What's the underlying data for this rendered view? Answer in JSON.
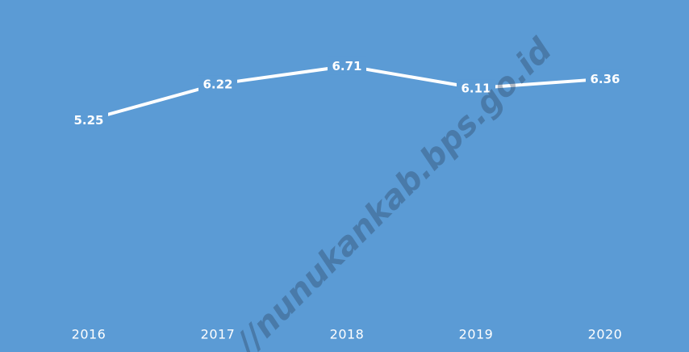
{
  "chart_data": {
    "type": "line",
    "categories": [
      "2016",
      "2017",
      "2018",
      "2019",
      "2020"
    ],
    "values": [
      5.25,
      6.22,
      6.71,
      6.11,
      6.36
    ],
    "color": "#ffffff",
    "background": "#5b9bd5",
    "ylim": [
      0,
      8.5
    ],
    "watermark": "//nunukankab.bps.go.id"
  }
}
